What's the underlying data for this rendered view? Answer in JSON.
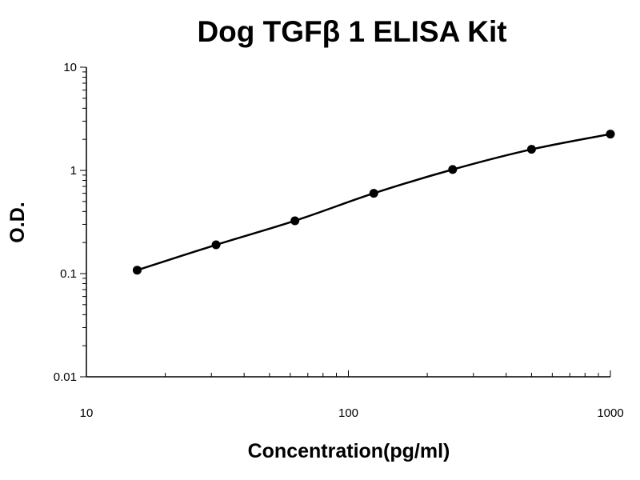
{
  "chart_data": {
    "type": "scatter",
    "title": "Dog TGFβ 1 ELISA Kit",
    "xlabel": "Concentration(pg/ml)",
    "ylabel": "O.D.",
    "xscale": "log",
    "yscale": "log",
    "xlim": [
      10,
      1000
    ],
    "ylim": [
      0.01,
      10
    ],
    "x_ticks": [
      "10",
      "100",
      "1000"
    ],
    "y_ticks": [
      "0.01",
      "0.1",
      "1",
      "10"
    ],
    "grid": false,
    "series": [
      {
        "x": [
          15.625,
          31.25,
          62.5,
          125,
          250,
          500,
          1000
        ],
        "y": [
          0.108,
          0.19,
          0.325,
          0.6,
          1.02,
          1.6,
          2.25
        ]
      }
    ]
  }
}
